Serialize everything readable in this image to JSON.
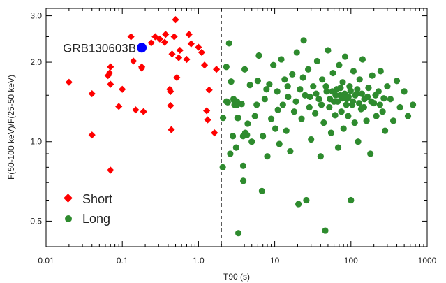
{
  "chart_data": {
    "type": "scatter",
    "title": "",
    "xlabel": "T90 (s)",
    "ylabel": "F(50-100 keV)/F(25-50 keV)",
    "xscale": "log",
    "yscale": "log",
    "xlim": [
      0.01,
      1000
    ],
    "ylim": [
      0.4,
      3.2
    ],
    "x_ticks": [
      "0.01",
      "0.1",
      "1.0",
      "10",
      "100",
      "1000"
    ],
    "y_ticks": [
      "0.5",
      "1.0",
      "2.0",
      "3.0"
    ],
    "divider_x": 2.0,
    "legend_position": "bottom-left",
    "colors": {
      "short": "#ff0000",
      "long": "#2e8b2e",
      "highlight": "#0000ff"
    },
    "annotation": {
      "text": "GRB130603B",
      "x": 0.18,
      "y": 2.27
    },
    "series": [
      {
        "name": "Short",
        "marker": "diamond",
        "points": [
          [
            0.02,
            1.68
          ],
          [
            0.04,
            1.52
          ],
          [
            0.04,
            1.06
          ],
          [
            0.07,
            0.78
          ],
          [
            0.065,
            1.78
          ],
          [
            0.068,
            1.82
          ],
          [
            0.07,
            1.92
          ],
          [
            0.07,
            1.65
          ],
          [
            0.09,
            1.36
          ],
          [
            0.1,
            1.58
          ],
          [
            0.13,
            2.5
          ],
          [
            0.14,
            2.02
          ],
          [
            0.15,
            1.32
          ],
          [
            0.18,
            1.9
          ],
          [
            0.18,
            1.92
          ],
          [
            0.19,
            1.3
          ],
          [
            0.24,
            2.37
          ],
          [
            0.27,
            2.5
          ],
          [
            0.31,
            2.45
          ],
          [
            0.36,
            2.38
          ],
          [
            0.37,
            2.55
          ],
          [
            0.42,
            1.58
          ],
          [
            0.43,
            1.55
          ],
          [
            0.43,
            1.37
          ],
          [
            0.44,
            1.11
          ],
          [
            0.45,
            2.15
          ],
          [
            0.48,
            2.5
          ],
          [
            0.5,
            2.9
          ],
          [
            0.52,
            1.75
          ],
          [
            0.55,
            2.08
          ],
          [
            0.57,
            2.22
          ],
          [
            0.7,
            2.05
          ],
          [
            0.75,
            2.55
          ],
          [
            0.8,
            2.35
          ],
          [
            1.0,
            2.28
          ],
          [
            1.1,
            2.18
          ],
          [
            1.2,
            1.95
          ],
          [
            1.28,
            1.31
          ],
          [
            1.32,
            1.21
          ],
          [
            1.38,
            1.57
          ],
          [
            1.62,
            1.08
          ],
          [
            1.72,
            1.88
          ]
        ]
      },
      {
        "name": "Long",
        "marker": "circle",
        "points": [
          [
            2.52,
            2.36
          ],
          [
            2.32,
            1.92
          ],
          [
            2.42,
            1.41
          ],
          [
            2.68,
            1.69
          ],
          [
            2.1,
            1.23
          ],
          [
            2.88,
            1.45
          ],
          [
            3.12,
            0.95
          ],
          [
            2.61,
            0.9
          ],
          [
            2.08,
            0.8
          ],
          [
            3.68,
            1.39
          ],
          [
            3.32,
            1.23
          ],
          [
            4.42,
            1.17
          ],
          [
            4.04,
            1.88
          ],
          [
            3.86,
            0.81
          ],
          [
            4.74,
            1.64
          ],
          [
            4.11,
            1.08
          ],
          [
            3.87,
            0.71
          ],
          [
            2.82,
            1.05
          ],
          [
            2.9,
            1.44
          ],
          [
            2.97,
            1.38
          ],
          [
            3.22,
            1.38
          ],
          [
            4.32,
            1.06
          ],
          [
            3.34,
            0.45
          ],
          [
            3.2,
            1.42
          ],
          [
            3.85,
            1.05
          ],
          [
            3.25,
            1.23
          ],
          [
            2.33,
            1.42
          ],
          [
            5.0,
            1.0
          ],
          [
            5.5,
            1.25
          ],
          [
            6.0,
            1.7
          ],
          [
            6.2,
            2.12
          ],
          [
            6.8,
            0.65
          ],
          [
            7.0,
            1.05
          ],
          [
            7.4,
            1.45
          ],
          [
            8.0,
            0.88
          ],
          [
            8.5,
            1.65
          ],
          [
            9.0,
            1.22
          ],
          [
            9.6,
            1.95
          ],
          [
            10.2,
            1.12
          ],
          [
            10.8,
            1.55
          ],
          [
            11.5,
            0.98
          ],
          [
            12.2,
            2.05
          ],
          [
            12.8,
            1.38
          ],
          [
            13.5,
            1.72
          ],
          [
            14.2,
            1.1
          ],
          [
            15.0,
            1.48
          ],
          [
            16.0,
            0.92
          ],
          [
            17.0,
            1.8
          ],
          [
            18.0,
            1.3
          ],
          [
            19.5,
            2.18
          ],
          [
            20.5,
            0.58
          ],
          [
            21.5,
            1.58
          ],
          [
            22.5,
            1.22
          ],
          [
            24.0,
            2.42
          ],
          [
            25.0,
            1.5
          ],
          [
            26.0,
            0.6
          ],
          [
            27.5,
            1.88
          ],
          [
            28.5,
            1.35
          ],
          [
            30.0,
            1.02
          ],
          [
            32.0,
            1.62
          ],
          [
            34.0,
            1.28
          ],
          [
            36.0,
            2.02
          ],
          [
            38.0,
            1.45
          ],
          [
            40.0,
            0.88
          ],
          [
            42.0,
            1.72
          ],
          [
            44.0,
            1.18
          ],
          [
            46.0,
            0.46
          ],
          [
            48.0,
            1.55
          ],
          [
            50.0,
            2.22
          ],
          [
            52.0,
            1.35
          ],
          [
            55.0,
            1.08
          ],
          [
            58.0,
            1.82
          ],
          [
            60.0,
            1.42
          ],
          [
            62.0,
            1.26
          ],
          [
            65.0,
            1.58
          ],
          [
            68.0,
            0.95
          ],
          [
            70.0,
            1.95
          ],
          [
            72.0,
            1.5
          ],
          [
            75.0,
            1.3
          ],
          [
            78.0,
            1.68
          ],
          [
            80.0,
            1.12
          ],
          [
            84.0,
            2.1
          ],
          [
            88.0,
            1.45
          ],
          [
            92.0,
            1.25
          ],
          [
            96.0,
            1.62
          ],
          [
            100.0,
            0.6
          ],
          [
            104.0,
            1.38
          ],
          [
            108.0,
            1.85
          ],
          [
            112.0,
            1.18
          ],
          [
            118.0,
            1.52
          ],
          [
            124.0,
            1.0
          ],
          [
            130.0,
            1.72
          ],
          [
            136.0,
            1.33
          ],
          [
            142.0,
            2.05
          ],
          [
            150.0,
            1.45
          ],
          [
            160.0,
            1.2
          ],
          [
            170.0,
            1.6
          ],
          [
            180.0,
            0.9
          ],
          [
            190.0,
            1.78
          ],
          [
            200.0,
            1.4
          ],
          [
            215.0,
            1.25
          ],
          [
            230.0,
            1.55
          ],
          [
            245.0,
            1.85
          ],
          [
            260.0,
            1.3
          ],
          [
            280.0,
            1.1
          ],
          [
            300.0,
            1.62
          ],
          [
            330.0,
            1.45
          ],
          [
            360.0,
            1.2
          ],
          [
            400.0,
            1.7
          ],
          [
            440.0,
            1.35
          ],
          [
            500.0,
            1.55
          ],
          [
            560.0,
            1.25
          ],
          [
            650.0,
            1.38
          ],
          [
            5.8,
            1.38
          ],
          [
            7.8,
            1.58
          ],
          [
            11.0,
            1.32
          ],
          [
            14.8,
            1.62
          ],
          [
            19.0,
            1.42
          ],
          [
            23.5,
            1.75
          ],
          [
            29.0,
            1.48
          ],
          [
            35.0,
            1.52
          ],
          [
            41.0,
            1.38
          ],
          [
            47.0,
            1.62
          ],
          [
            53.0,
            1.45
          ],
          [
            57.0,
            1.55
          ],
          [
            63.0,
            1.5
          ],
          [
            67.0,
            1.42
          ],
          [
            73.0,
            1.6
          ],
          [
            77.0,
            1.46
          ],
          [
            83.0,
            1.52
          ],
          [
            87.0,
            1.38
          ],
          [
            93.0,
            1.48
          ],
          [
            99.0,
            1.56
          ],
          [
            106.0,
            1.42
          ],
          [
            114.0,
            1.5
          ],
          [
            121.0,
            1.58
          ],
          [
            128.0,
            1.4
          ],
          [
            139.0,
            1.52
          ],
          [
            148.0,
            1.35
          ],
          [
            165.0,
            1.48
          ],
          [
            185.0,
            1.42
          ],
          [
            210.0,
            1.5
          ],
          [
            240.0,
            1.38
          ],
          [
            270.0,
            1.46
          ]
        ]
      }
    ],
    "highlight_point": {
      "x": 0.18,
      "y": 2.27
    }
  }
}
